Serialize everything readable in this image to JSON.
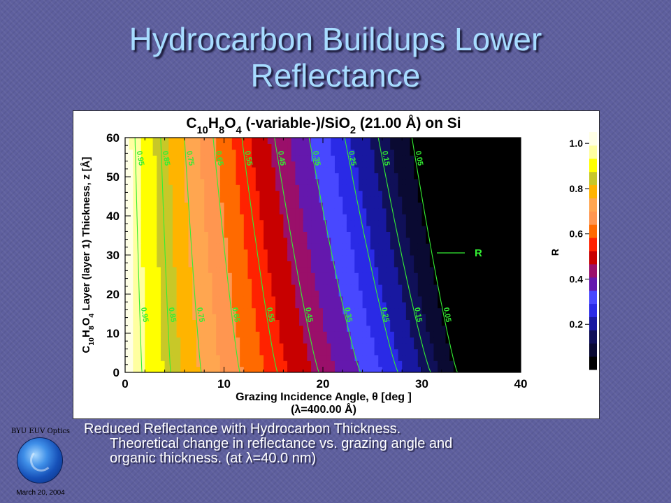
{
  "slide": {
    "title_line1": "Hydrocarbon Buildups Lower",
    "title_line2": "Reflectance",
    "caption_line1": "Reduced Reflectance with Hydrocarbon Thickness.",
    "caption_line2": "Theoretical change in reflectance vs. grazing angle and",
    "caption_line3": "organic thickness. (at λ=40.0 nm)"
  },
  "logo": {
    "label": "BYU EUV Optics",
    "date": "March 20, 2004"
  },
  "colors": {
    "title": "#a7dcff",
    "caption": "#ffffff",
    "background": "#5e5f9e",
    "contour_line": "#33ee33"
  },
  "chart_data": {
    "type": "heatmap",
    "title": "C10H8O4 (-variable-)/SiO2 (21.00 Å) on Si",
    "xlabel": "Grazing Incidence Angle, θ [deg ]",
    "xlabel_sub": "(λ=400.00 Å)",
    "ylabel": "C10H8O4 Layer (layer 1) Thickness, z [Å]",
    "xlim": [
      0,
      40
    ],
    "ylim": [
      0,
      60
    ],
    "x_ticks": [
      "0",
      "10",
      "20",
      "30",
      "40"
    ],
    "y_ticks": [
      "0",
      "10",
      "20",
      "30",
      "40",
      "50",
      "60"
    ],
    "colorbar": {
      "label": "R",
      "range": [
        0,
        1.05
      ],
      "ticks": [
        "0.2",
        "0.4",
        "0.6",
        "0.8",
        "1.0"
      ],
      "band_colors": [
        "#000000",
        "#0a0a32",
        "#101058",
        "#1818a0",
        "#2a2ae6",
        "#4848ff",
        "#6418ad",
        "#9a0f6a",
        "#c80000",
        "#ff2200",
        "#ff6a00",
        "#ff9650",
        "#ffa650",
        "#ffb400",
        "#c8c828",
        "#ffff00",
        "#ffffa0",
        "#ffffe6"
      ]
    },
    "contour_levels": [
      "0.95",
      "0.85",
      "0.75",
      "0.65",
      "0.55",
      "0.45",
      "0.35",
      "0.25",
      "0.15",
      "0.05"
    ],
    "contour_angles_at_z60": [
      1.0,
      3.6,
      6.0,
      8.9,
      11.8,
      15.1,
      18.6,
      22.2,
      25.6,
      29.0
    ],
    "contour_angles_at_z0": [
      1.7,
      4.6,
      7.7,
      11.6,
      15.4,
      19.6,
      23.8,
      27.6,
      30.9,
      33.6
    ],
    "annotation": "R"
  }
}
